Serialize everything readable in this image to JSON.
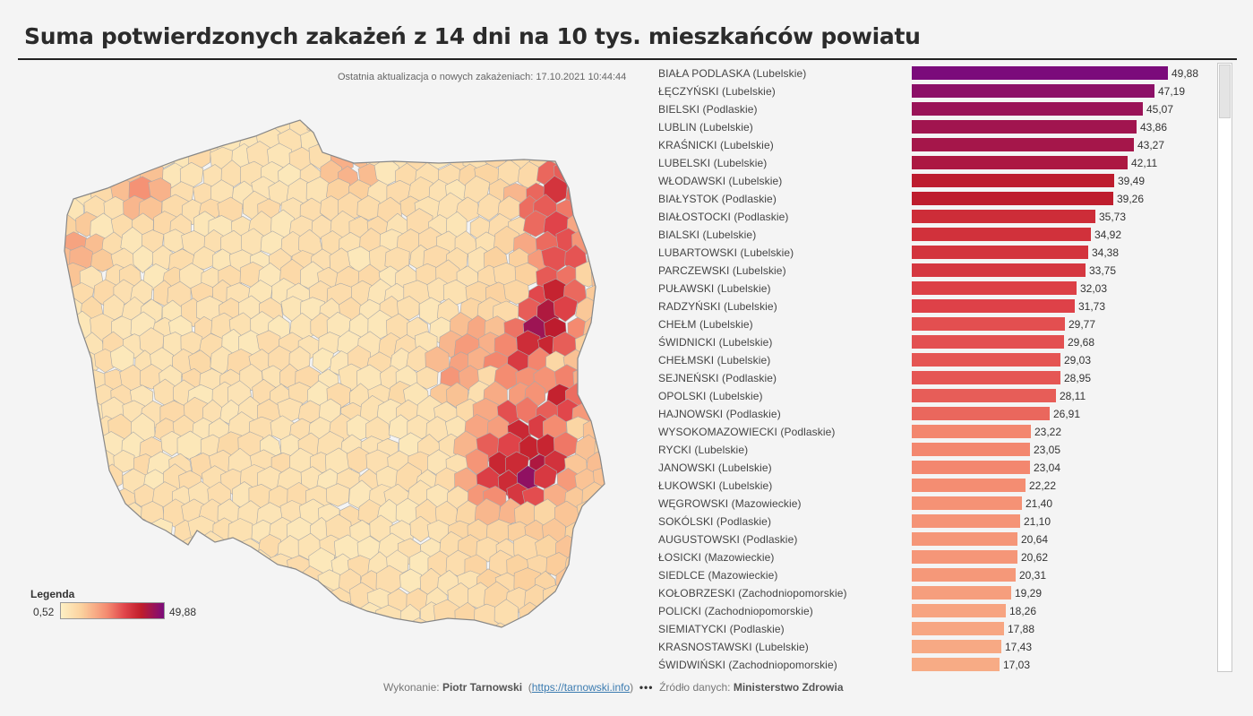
{
  "title": "Suma potwierdzonych zakażeń z 14 dni na 10 tys. mieszkańców powiatu",
  "update_text": "Ostatnia aktualizacja o nowych zakażeniach: 17.10.2021 10:44:44",
  "legend": {
    "title": "Legenda",
    "min": "0,52",
    "max": "49,88",
    "min_value": 0.52,
    "max_value": 49.88,
    "colors": [
      "#fdf0c4",
      "#fbd19e",
      "#f48a70",
      "#e0444a",
      "#c01d2b",
      "#7b0b7b"
    ]
  },
  "footer": {
    "made_by_label": "Wykonanie:",
    "author": "Piotr Tarnowski",
    "link": "https://tarnowski.info",
    "dots": "•••",
    "source_label": "Źródło danych:",
    "source": "Ministerstwo Zdrowia"
  },
  "chart_data": {
    "type": "bar",
    "orientation": "horizontal",
    "title": "Suma potwierdzonych zakażeń z 14 dni na 10 tys. mieszkańców powiatu",
    "xlim": [
      0,
      49.88
    ],
    "categories": [
      "BIAŁA PODLASKA (Lubelskie)",
      "ŁĘCZYŃSKI (Lubelskie)",
      "BIELSKI (Podlaskie)",
      "LUBLIN (Lubelskie)",
      "KRAŚNICKI (Lubelskie)",
      "LUBELSKI (Lubelskie)",
      "WŁODAWSKI (Lubelskie)",
      "BIAŁYSTOK (Podlaskie)",
      "BIAŁOSTOCKI (Podlaskie)",
      "BIALSKI (Lubelskie)",
      "LUBARTOWSKI (Lubelskie)",
      "PARCZEWSKI (Lubelskie)",
      "PUŁAWSKI (Lubelskie)",
      "RADZYŃSKI (Lubelskie)",
      "CHEŁM (Lubelskie)",
      "ŚWIDNICKI (Lubelskie)",
      "CHEŁMSKI (Lubelskie)",
      "SEJNEŃSKI (Podlaskie)",
      "OPOLSKI (Lubelskie)",
      "HAJNOWSKI (Podlaskie)",
      "WYSOKOMAZOWIECKI (Podlaskie)",
      "RYCKI (Lubelskie)",
      "JANOWSKI (Lubelskie)",
      "ŁUKOWSKI (Lubelskie)",
      "WĘGROWSKI (Mazowieckie)",
      "SOKÓLSKI (Podlaskie)",
      "AUGUSTOWSKI (Podlaskie)",
      "ŁOSICKI (Mazowieckie)",
      "SIEDLCE (Mazowieckie)",
      "KOŁOBRZESKI (Zachodniopomorskie)",
      "POLICKI (Zachodniopomorskie)",
      "SIEMIATYCKI (Podlaskie)",
      "KRASNOSTAWSKI (Lubelskie)",
      "ŚWIDWIŃSKI (Zachodniopomorskie)"
    ],
    "values": [
      49.88,
      47.19,
      45.07,
      43.86,
      43.27,
      42.11,
      39.49,
      39.26,
      35.73,
      34.92,
      34.38,
      33.75,
      32.03,
      31.73,
      29.77,
      29.68,
      29.03,
      28.95,
      28.11,
      26.91,
      23.22,
      23.05,
      23.04,
      22.22,
      21.4,
      21.1,
      20.64,
      20.62,
      20.31,
      19.29,
      18.26,
      17.88,
      17.43,
      17.03
    ],
    "value_labels": [
      "49,88",
      "47,19",
      "45,07",
      "43,86",
      "43,27",
      "42,11",
      "39,49",
      "39,26",
      "35,73",
      "34,92",
      "34,38",
      "33,75",
      "32,03",
      "31,73",
      "29,77",
      "29,68",
      "29,03",
      "28,95",
      "28,11",
      "26,91",
      "23,22",
      "23,05",
      "23,04",
      "22,22",
      "21,40",
      "21,10",
      "20,64",
      "20,62",
      "20,31",
      "19,29",
      "18,26",
      "17,88",
      "17,43",
      "17,03"
    ]
  }
}
